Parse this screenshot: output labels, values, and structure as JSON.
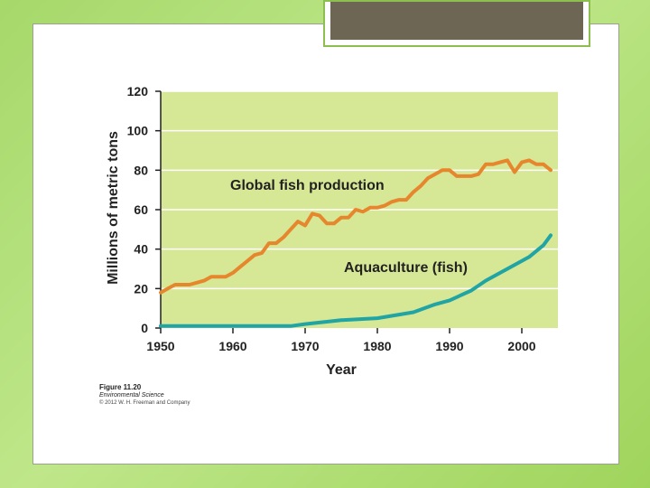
{
  "figure": {
    "number": "Figure 11.20",
    "book": "Environmental Science",
    "copyright": "© 2012 W. H. Freeman and Company"
  },
  "colors": {
    "plot_background": "#d6e796",
    "global_fish_line": "#e7872d",
    "aquaculture_line": "#21a4a4"
  },
  "chart_data": {
    "type": "line",
    "xlabel": "Year",
    "ylabel": "Millions of metric tons",
    "xlim": [
      1950,
      2005
    ],
    "ylim": [
      0,
      120
    ],
    "x_ticks": [
      1950,
      1960,
      1970,
      1980,
      1990,
      2000
    ],
    "y_ticks": [
      0,
      20,
      40,
      60,
      80,
      100,
      120
    ],
    "grid": true,
    "series": [
      {
        "name": "Global fish production",
        "x": [
          1950,
          1951,
          1952,
          1953,
          1954,
          1955,
          1956,
          1957,
          1958,
          1959,
          1960,
          1961,
          1962,
          1963,
          1964,
          1965,
          1966,
          1967,
          1968,
          1969,
          1970,
          1971,
          1972,
          1973,
          1974,
          1975,
          1976,
          1977,
          1978,
          1979,
          1980,
          1981,
          1982,
          1983,
          1984,
          1985,
          1986,
          1987,
          1988,
          1989,
          1990,
          1991,
          1992,
          1993,
          1994,
          1995,
          1996,
          1997,
          1998,
          1999,
          2000,
          2001,
          2002,
          2003,
          2004
        ],
        "values": [
          18,
          20,
          22,
          22,
          22,
          23,
          24,
          26,
          26,
          26,
          28,
          31,
          34,
          37,
          38,
          43,
          43,
          46,
          50,
          54,
          52,
          58,
          57,
          53,
          53,
          56,
          56,
          60,
          59,
          61,
          61,
          62,
          64,
          65,
          65,
          69,
          72,
          76,
          78,
          80,
          80,
          77,
          77,
          77,
          78,
          83,
          83,
          84,
          85,
          79,
          84,
          85,
          83,
          83,
          80
        ]
      },
      {
        "name": "Aquaculture (fish)",
        "x": [
          1950,
          1955,
          1960,
          1965,
          1968,
          1970,
          1975,
          1980,
          1985,
          1988,
          1990,
          1993,
          1995,
          1997,
          1999,
          2001,
          2003,
          2004
        ],
        "values": [
          1,
          1,
          1,
          1,
          1,
          2,
          4,
          5,
          8,
          12,
          14,
          19,
          24,
          28,
          32,
          36,
          42,
          47
        ]
      }
    ]
  }
}
